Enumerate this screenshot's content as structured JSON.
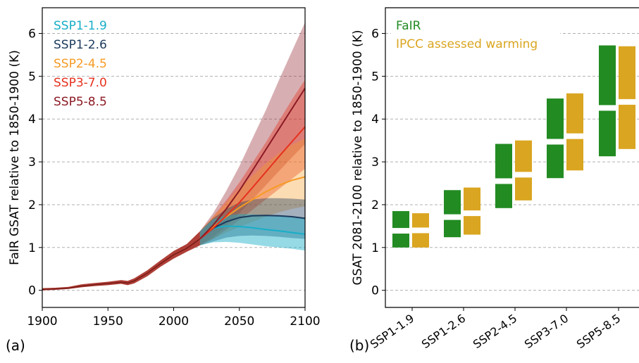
{
  "panel_a_label": "(a)",
  "panel_b_label": "(b)",
  "colors": {
    "SSP1-1.9": "#17aec8",
    "SSP1-2.6": "#1b3a5c",
    "SSP2-4.5": "#f59b25",
    "SSP3-7.0": "#e6311e",
    "SSP5-8.5": "#8b1a24",
    "historical": "#a52a22",
    "fair": "#228b22",
    "ipcc": "#daa520"
  },
  "chart_data": [
    {
      "type": "line",
      "ylabel": "FaIR GSAT relative to 1850-1900 (K)",
      "xlabel": "",
      "xlim": [
        1900,
        2100
      ],
      "ylim": [
        -0.4,
        6.6
      ],
      "xticks": [
        "1900",
        "1950",
        "2000",
        "2050",
        "2100"
      ],
      "yticks": [
        "0",
        "1",
        "2",
        "3",
        "4",
        "5",
        "6"
      ],
      "grid": "horizontal dashed",
      "legend": "top-left",
      "historical": {
        "x": [
          1900,
          1910,
          1920,
          1930,
          1940,
          1950,
          1960,
          1965,
          1970,
          1980,
          1990,
          2000,
          2010,
          2020
        ],
        "y": [
          0.02,
          0.03,
          0.05,
          0.1,
          0.13,
          0.16,
          0.19,
          0.17,
          0.22,
          0.4,
          0.62,
          0.83,
          0.98,
          1.2
        ],
        "low": [
          0.0,
          0.01,
          0.03,
          0.07,
          0.1,
          0.12,
          0.15,
          0.12,
          0.16,
          0.33,
          0.55,
          0.74,
          0.9,
          1.05
        ],
        "high": [
          0.05,
          0.06,
          0.08,
          0.14,
          0.17,
          0.2,
          0.24,
          0.22,
          0.28,
          0.47,
          0.7,
          0.92,
          1.08,
          1.38
        ]
      },
      "series": [
        {
          "name": "SSP1-1.9",
          "x": [
            2020,
            2030,
            2040,
            2050,
            2060,
            2070,
            2080,
            2090,
            2100
          ],
          "y": [
            1.2,
            1.45,
            1.5,
            1.49,
            1.46,
            1.42,
            1.39,
            1.35,
            1.31
          ],
          "low": [
            1.05,
            1.12,
            1.13,
            1.11,
            1.07,
            1.03,
            1.0,
            0.97,
            0.93
          ],
          "high": [
            1.38,
            1.66,
            1.75,
            1.78,
            1.77,
            1.76,
            1.74,
            1.72,
            1.7
          ]
        },
        {
          "name": "SSP1-2.6",
          "x": [
            2020,
            2030,
            2040,
            2050,
            2060,
            2070,
            2080,
            2090,
            2100
          ],
          "y": [
            1.2,
            1.45,
            1.6,
            1.7,
            1.74,
            1.75,
            1.74,
            1.72,
            1.68
          ],
          "low": [
            1.05,
            1.14,
            1.23,
            1.27,
            1.28,
            1.27,
            1.25,
            1.22,
            1.2
          ],
          "high": [
            1.38,
            1.68,
            1.9,
            2.05,
            2.12,
            2.15,
            2.15,
            2.14,
            2.12
          ]
        },
        {
          "name": "SSP2-4.5",
          "x": [
            2020,
            2030,
            2040,
            2050,
            2060,
            2070,
            2080,
            2090,
            2100
          ],
          "y": [
            1.2,
            1.48,
            1.72,
            1.93,
            2.12,
            2.3,
            2.45,
            2.57,
            2.65
          ],
          "low": [
            1.05,
            1.2,
            1.35,
            1.48,
            1.6,
            1.72,
            1.82,
            1.9,
            1.96
          ],
          "high": [
            1.38,
            1.72,
            2.05,
            2.38,
            2.68,
            2.96,
            3.2,
            3.4,
            3.55
          ]
        },
        {
          "name": "SSP3-7.0",
          "x": [
            2020,
            2030,
            2040,
            2050,
            2060,
            2070,
            2080,
            2090,
            2100
          ],
          "y": [
            1.2,
            1.45,
            1.74,
            2.05,
            2.4,
            2.76,
            3.12,
            3.47,
            3.82
          ],
          "low": [
            1.05,
            1.2,
            1.42,
            1.64,
            1.88,
            2.12,
            2.36,
            2.6,
            2.84
          ],
          "high": [
            1.38,
            1.72,
            2.1,
            2.52,
            2.98,
            3.45,
            3.95,
            4.45,
            4.92
          ]
        },
        {
          "name": "SSP5-8.5",
          "x": [
            2020,
            2030,
            2040,
            2050,
            2060,
            2070,
            2080,
            2090,
            2100
          ],
          "y": [
            1.2,
            1.52,
            1.9,
            2.33,
            2.8,
            3.28,
            3.76,
            4.24,
            4.72
          ],
          "low": [
            1.05,
            1.25,
            1.5,
            1.8,
            2.12,
            2.45,
            2.78,
            3.1,
            3.42
          ],
          "high": [
            1.38,
            1.8,
            2.32,
            2.9,
            3.55,
            4.2,
            4.9,
            5.58,
            6.26
          ]
        }
      ]
    },
    {
      "type": "bar",
      "ylabel": "GSAT 2081-2100 relative to 1850-1900 (K)",
      "ylim": [
        -0.4,
        6.6
      ],
      "yticks": [
        "0",
        "1",
        "2",
        "3",
        "4",
        "5",
        "6"
      ],
      "grid": "horizontal dashed",
      "legend": "top-left",
      "categories": [
        "SSP1-1.9",
        "SSP1-2.6",
        "SSP2-4.5",
        "SSP3-7.0",
        "SSP5-8.5"
      ],
      "series": [
        {
          "name": "FaIR",
          "low": [
            1.0,
            1.24,
            1.92,
            2.62,
            3.13
          ],
          "median": [
            1.39,
            1.71,
            2.55,
            3.47,
            4.26
          ],
          "high": [
            1.85,
            2.34,
            3.42,
            4.48,
            5.72
          ]
        },
        {
          "name": "IPCC assessed warming",
          "low": [
            1.0,
            1.3,
            2.1,
            2.8,
            3.3
          ],
          "median": [
            1.4,
            1.8,
            2.7,
            3.6,
            4.4
          ],
          "high": [
            1.8,
            2.4,
            3.5,
            4.6,
            5.7
          ]
        }
      ]
    }
  ]
}
